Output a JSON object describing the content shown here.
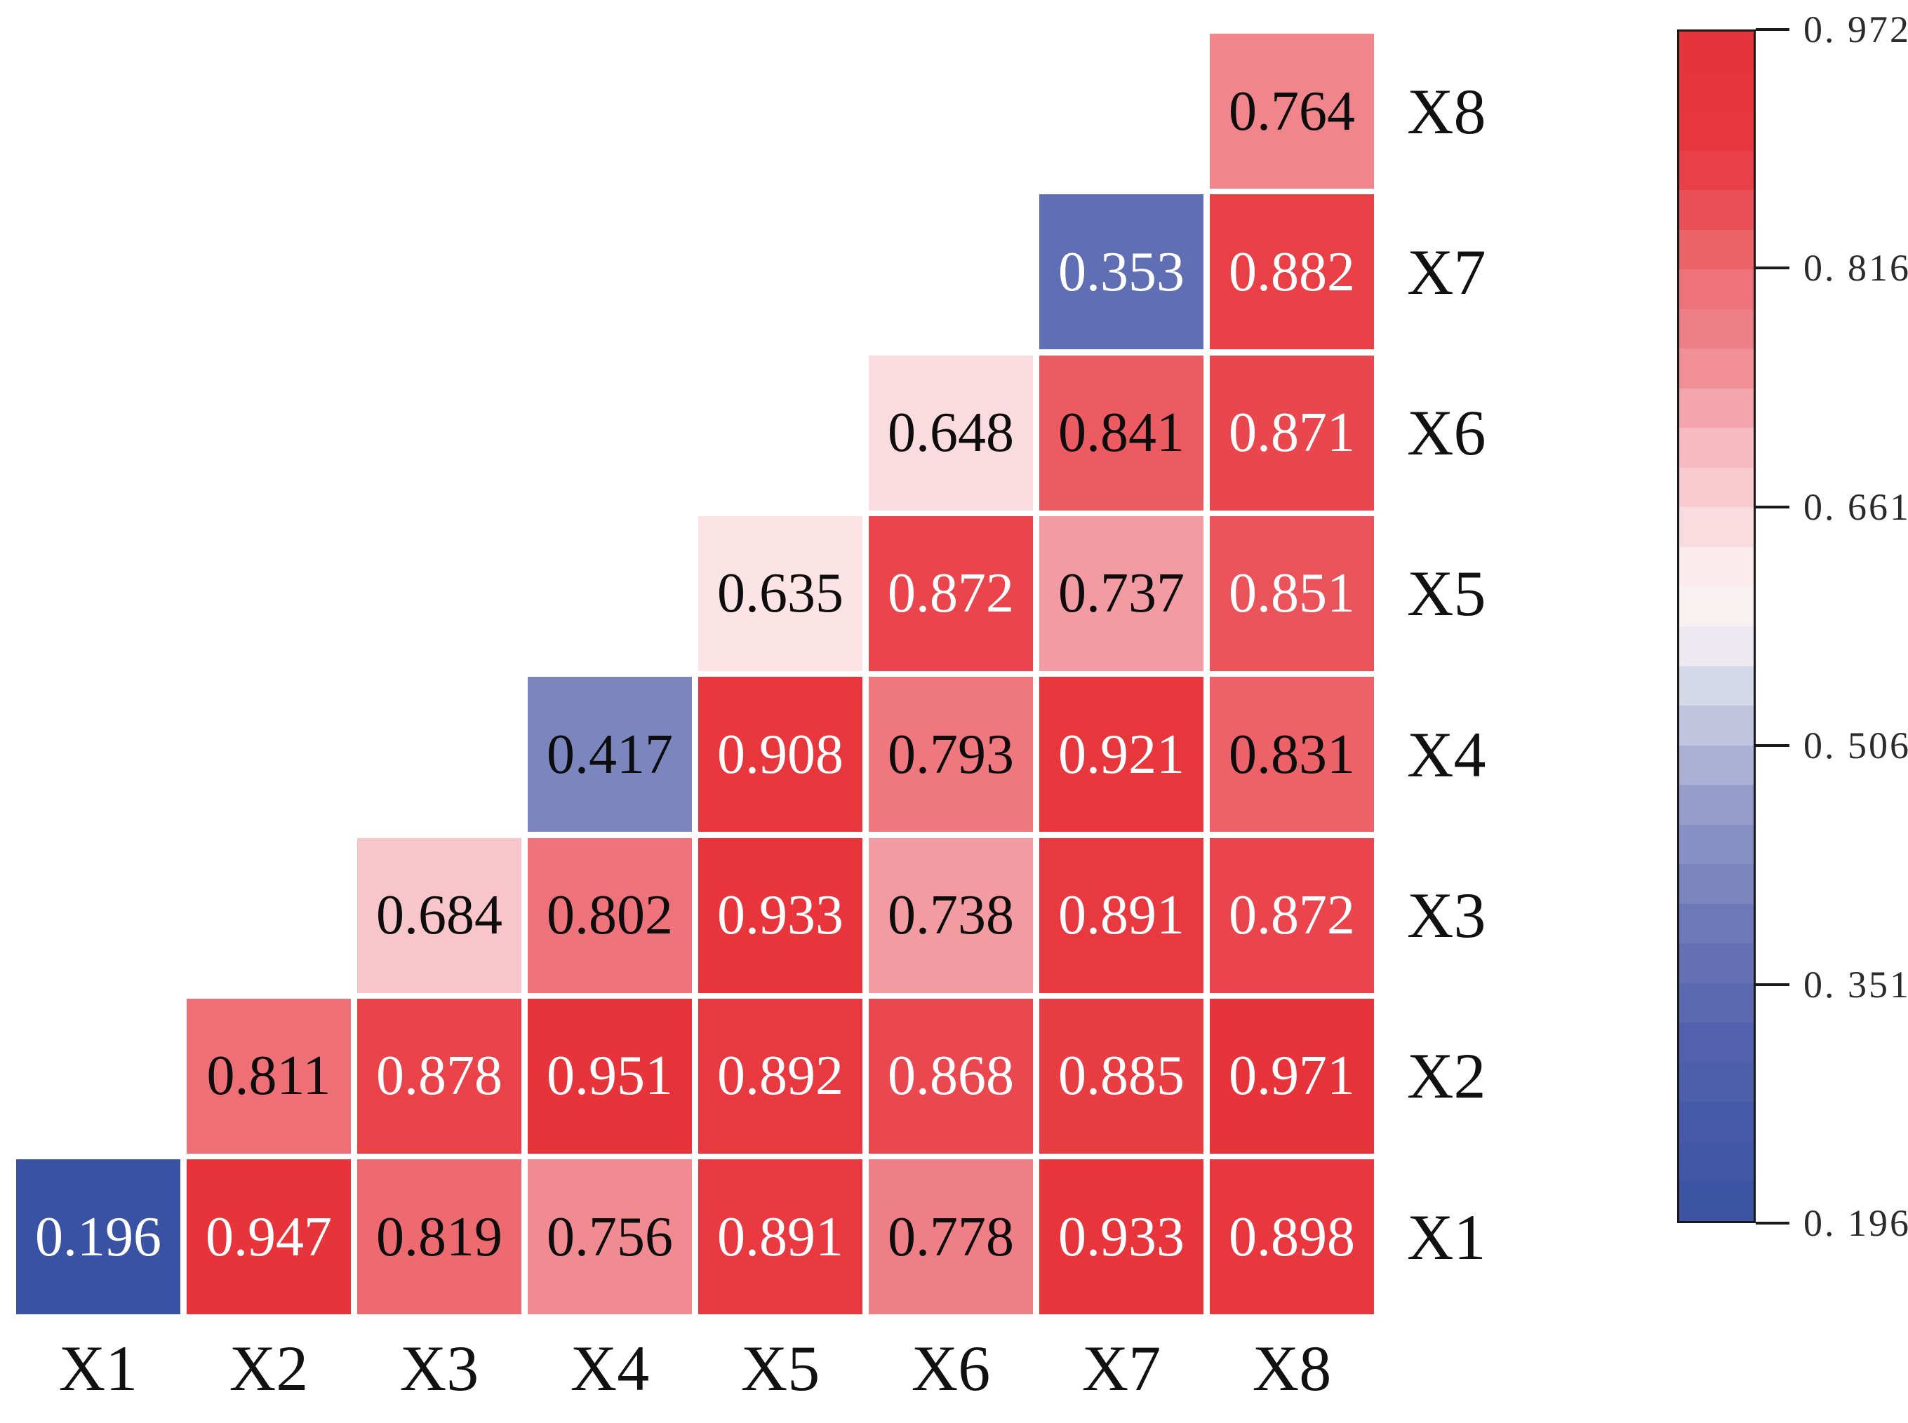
{
  "chart_data": {
    "type": "heatmap",
    "title": "",
    "variables": [
      "X1",
      "X2",
      "X3",
      "X4",
      "X5",
      "X6",
      "X7",
      "X8"
    ],
    "x_axis_labels": [
      "X1",
      "X2",
      "X3",
      "X4",
      "X5",
      "X6",
      "X7",
      "X8"
    ],
    "y_axis_labels_top_to_bottom": [
      "X8",
      "X7",
      "X6",
      "X5",
      "X4",
      "X3",
      "X2",
      "X1"
    ],
    "layout": "lower-triangular, rows labeled on right side, columns labeled on bottom",
    "rows": [
      {
        "label": "X1",
        "cells": [
          {
            "col": "X1",
            "value": 0.196
          },
          {
            "col": "X2",
            "value": 0.947
          },
          {
            "col": "X3",
            "value": 0.819
          },
          {
            "col": "X4",
            "value": 0.756
          },
          {
            "col": "X5",
            "value": 0.891
          },
          {
            "col": "X6",
            "value": 0.778
          },
          {
            "col": "X7",
            "value": 0.933
          },
          {
            "col": "X8",
            "value": 0.898
          }
        ]
      },
      {
        "label": "X2",
        "cells": [
          {
            "col": "X2",
            "value": 0.811
          },
          {
            "col": "X3",
            "value": 0.878
          },
          {
            "col": "X4",
            "value": 0.951
          },
          {
            "col": "X5",
            "value": 0.892
          },
          {
            "col": "X6",
            "value": 0.868
          },
          {
            "col": "X7",
            "value": 0.885
          },
          {
            "col": "X8",
            "value": 0.971
          }
        ]
      },
      {
        "label": "X3",
        "cells": [
          {
            "col": "X3",
            "value": 0.684
          },
          {
            "col": "X4",
            "value": 0.802
          },
          {
            "col": "X5",
            "value": 0.933
          },
          {
            "col": "X6",
            "value": 0.738
          },
          {
            "col": "X7",
            "value": 0.891
          },
          {
            "col": "X8",
            "value": 0.872
          }
        ]
      },
      {
        "label": "X4",
        "cells": [
          {
            "col": "X4",
            "value": 0.417
          },
          {
            "col": "X5",
            "value": 0.908
          },
          {
            "col": "X6",
            "value": 0.793
          },
          {
            "col": "X7",
            "value": 0.921
          },
          {
            "col": "X8",
            "value": 0.831
          }
        ]
      },
      {
        "label": "X5",
        "cells": [
          {
            "col": "X5",
            "value": 0.635
          },
          {
            "col": "X6",
            "value": 0.872
          },
          {
            "col": "X7",
            "value": 0.737
          },
          {
            "col": "X8",
            "value": 0.851
          }
        ]
      },
      {
        "label": "X6",
        "cells": [
          {
            "col": "X6",
            "value": 0.648
          },
          {
            "col": "X7",
            "value": 0.841
          },
          {
            "col": "X8",
            "value": 0.871
          }
        ]
      },
      {
        "label": "X7",
        "cells": [
          {
            "col": "X7",
            "value": 0.353
          },
          {
            "col": "X8",
            "value": 0.882
          }
        ]
      },
      {
        "label": "X8",
        "cells": [
          {
            "col": "X8",
            "value": 0.764
          }
        ]
      }
    ],
    "colorbar": {
      "vmin": 0.196,
      "vmax": 0.972,
      "tick_labels_top_to_bottom": [
        "0. 9720",
        "0. 8168",
        "0. 6616",
        "0. 5064",
        "0. 3512",
        "0. 1960"
      ],
      "tick_values_top_to_bottom": [
        0.972,
        0.8168,
        0.6616,
        0.5064,
        0.3512,
        0.196
      ],
      "style": "stepped diverging blue-white-red, red at top"
    },
    "palette": {
      "min_blue": "#3A52A3",
      "midpoint_white": "#F7F3F4",
      "max_red": "#E7333A",
      "anchors": [
        {
          "t": 0.0,
          "rgb": [
            58,
            82,
            163
          ]
        },
        {
          "t": 0.15,
          "rgb": [
            82,
            97,
            173
          ]
        },
        {
          "t": 0.25,
          "rgb": [
            108,
            121,
            184
          ]
        },
        {
          "t": 0.35,
          "rgb": [
            150,
            157,
            203
          ]
        },
        {
          "t": 0.45,
          "rgb": [
            213,
            216,
            233
          ]
        },
        {
          "t": 0.5,
          "rgb": [
            247,
            243,
            244
          ]
        },
        {
          "t": 0.55,
          "rgb": [
            252,
            235,
            237
          ]
        },
        {
          "t": 0.6,
          "rgb": [
            249,
            211,
            216
          ]
        },
        {
          "t": 0.65,
          "rgb": [
            246,
            186,
            192
          ]
        },
        {
          "t": 0.73,
          "rgb": [
            240,
            134,
            141
          ]
        },
        {
          "t": 0.8,
          "rgb": [
            238,
            108,
            115
          ]
        },
        {
          "t": 0.85,
          "rgb": [
            235,
            80,
            87
          ]
        },
        {
          "t": 0.9,
          "rgb": [
            232,
            55,
            62
          ]
        },
        {
          "t": 1.0,
          "rgb": [
            231,
            51,
            58
          ]
        }
      ],
      "cell_text_black": "#0d0d0d",
      "cell_text_white": "#ffffff"
    }
  }
}
